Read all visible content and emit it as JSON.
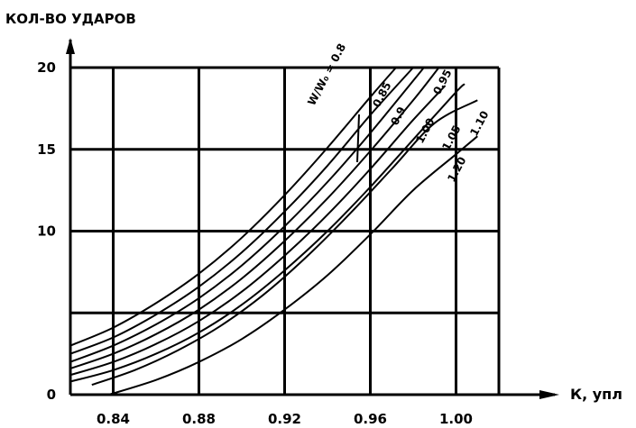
{
  "chart_data": {
    "type": "line",
    "title": "",
    "ylabel": "КОЛ-ВО УДАРОВ",
    "xlabel": "К, упл",
    "xlim": [
      0.82,
      1.02
    ],
    "ylim": [
      0,
      20
    ],
    "x_ticks": [
      {
        "value": 0.84,
        "label": "0.84"
      },
      {
        "value": 0.88,
        "label": "0.88"
      },
      {
        "value": 0.92,
        "label": "0.92"
      },
      {
        "value": 0.96,
        "label": "0.96"
      },
      {
        "value": 1.0,
        "label": "1.00"
      }
    ],
    "y_ticks": [
      {
        "value": 0,
        "label": "0"
      },
      {
        "value": 10,
        "label": "10"
      },
      {
        "value": 15,
        "label": "15"
      },
      {
        "value": 20,
        "label": "20"
      }
    ],
    "grid_x": [
      0.84,
      0.88,
      0.92,
      0.96,
      1.0
    ],
    "grid_y": [
      5,
      10,
      15,
      20
    ],
    "grid": true,
    "series_label_prefix": "W/W₀ = ",
    "series": [
      {
        "name": "0.8",
        "label": "W/W₀ = 0.8",
        "points": [
          [
            0.82,
            3.0
          ],
          [
            0.84,
            4.1
          ],
          [
            0.86,
            5.6
          ],
          [
            0.88,
            7.4
          ],
          [
            0.9,
            9.6
          ],
          [
            0.92,
            12.2
          ],
          [
            0.94,
            15.1
          ],
          [
            0.96,
            18.2
          ],
          [
            0.972,
            20.0
          ]
        ]
      },
      {
        "name": "0.85",
        "label": "0.85",
        "points": [
          [
            0.82,
            2.5
          ],
          [
            0.84,
            3.5
          ],
          [
            0.86,
            4.9
          ],
          [
            0.88,
            6.6
          ],
          [
            0.9,
            8.7
          ],
          [
            0.92,
            11.2
          ],
          [
            0.94,
            14.0
          ],
          [
            0.96,
            17.1
          ],
          [
            0.98,
            20.0
          ]
        ]
      },
      {
        "name": "0.9",
        "label": "0.9",
        "points": [
          [
            0.82,
            2.0
          ],
          [
            0.84,
            3.0
          ],
          [
            0.86,
            4.3
          ],
          [
            0.88,
            5.9
          ],
          [
            0.9,
            7.9
          ],
          [
            0.92,
            10.3
          ],
          [
            0.94,
            13.0
          ],
          [
            0.96,
            16.0
          ],
          [
            0.985,
            20.0
          ]
        ]
      },
      {
        "name": "0.95",
        "label": "0.95",
        "points": [
          [
            0.82,
            1.6
          ],
          [
            0.84,
            2.5
          ],
          [
            0.86,
            3.7
          ],
          [
            0.88,
            5.2
          ],
          [
            0.9,
            7.1
          ],
          [
            0.92,
            9.4
          ],
          [
            0.94,
            12.0
          ],
          [
            0.96,
            14.9
          ],
          [
            0.98,
            18.0
          ],
          [
            0.992,
            20.0
          ]
        ]
      },
      {
        "name": "1.00",
        "label": "1.00",
        "points": [
          [
            0.82,
            1.2
          ],
          [
            0.84,
            2.0
          ],
          [
            0.86,
            3.1
          ],
          [
            0.88,
            4.5
          ],
          [
            0.9,
            6.3
          ],
          [
            0.92,
            8.5
          ],
          [
            0.94,
            11.0
          ],
          [
            0.96,
            13.8
          ],
          [
            0.98,
            16.8
          ],
          [
            0.995,
            18.9
          ]
        ]
      },
      {
        "name": "1.05",
        "label": "1.05",
        "points": [
          [
            0.82,
            0.8
          ],
          [
            0.84,
            1.5
          ],
          [
            0.86,
            2.5
          ],
          [
            0.88,
            3.8
          ],
          [
            0.9,
            5.5
          ],
          [
            0.92,
            7.6
          ],
          [
            0.94,
            10.0
          ],
          [
            0.96,
            12.7
          ],
          [
            0.98,
            15.6
          ],
          [
            1.0,
            18.5
          ],
          [
            1.004,
            19.0
          ]
        ]
      },
      {
        "name": "1.10",
        "label": "1.10",
        "points": [
          [
            0.83,
            0.6
          ],
          [
            0.85,
            1.5
          ],
          [
            0.87,
            2.7
          ],
          [
            0.89,
            4.2
          ],
          [
            0.91,
            6.1
          ],
          [
            0.93,
            8.4
          ],
          [
            0.95,
            11.0
          ],
          [
            0.97,
            13.8
          ],
          [
            0.99,
            16.6
          ],
          [
            1.01,
            18.0
          ]
        ]
      },
      {
        "name": "1.20",
        "label": "1.20",
        "points": [
          [
            0.838,
            0.0
          ],
          [
            0.86,
            0.9
          ],
          [
            0.88,
            2.0
          ],
          [
            0.9,
            3.4
          ],
          [
            0.92,
            5.2
          ],
          [
            0.94,
            7.3
          ],
          [
            0.96,
            9.8
          ],
          [
            0.98,
            12.5
          ],
          [
            1.0,
            14.7
          ],
          [
            1.01,
            15.8
          ]
        ]
      }
    ]
  }
}
